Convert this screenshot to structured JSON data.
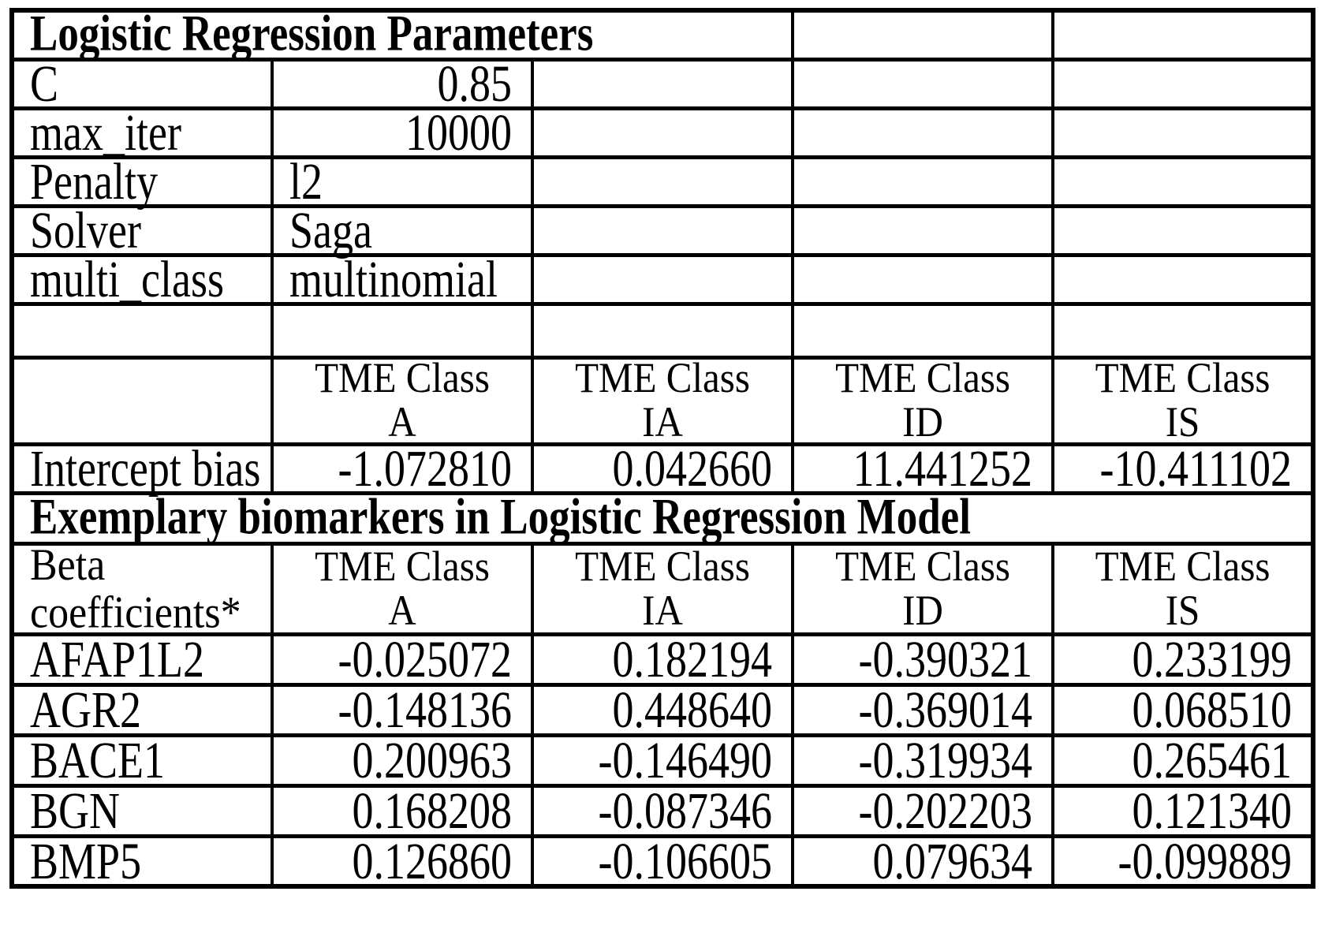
{
  "table": {
    "section1_heading": "Logistic Regression Parameters",
    "parameters": [
      {
        "name": "C",
        "value": "0.85"
      },
      {
        "name": "max_iter",
        "value": "10000"
      },
      {
        "name": "Penalty",
        "value": "l2"
      },
      {
        "name": "Solver",
        "value": "Saga"
      },
      {
        "name": "multi_class",
        "value": "multinomial"
      }
    ],
    "class_columns": [
      {
        "line1": "TME Class",
        "line2": "A"
      },
      {
        "line1": "TME Class",
        "line2": "IA"
      },
      {
        "line1": "TME Class",
        "line2": "ID"
      },
      {
        "line1": "TME Class",
        "line2": "IS"
      }
    ],
    "intercept": {
      "label": "Intercept bias",
      "values": [
        "-1.072810",
        "0.042660",
        "11.441252",
        "-10.411102"
      ]
    },
    "section2_heading": "Exemplary biomarkers in Logistic Regression Model",
    "beta_header": {
      "line1": "Beta",
      "line2": "coefficients*"
    },
    "biomarkers": [
      {
        "gene": "AFAP1L2",
        "values": [
          "-0.025072",
          "0.182194",
          "-0.390321",
          "0.233199"
        ]
      },
      {
        "gene": "AGR2",
        "values": [
          "-0.148136",
          "0.448640",
          "-0.369014",
          "0.068510"
        ]
      },
      {
        "gene": "BACE1",
        "values": [
          "0.200963",
          "-0.146490",
          "-0.319934",
          "0.265461"
        ]
      },
      {
        "gene": "BGN",
        "values": [
          "0.168208",
          "-0.087346",
          "-0.202203",
          "0.121340"
        ]
      },
      {
        "gene": "BMP5",
        "values": [
          "0.126860",
          "-0.106605",
          "0.079634",
          "-0.099889"
        ]
      }
    ],
    "colors": {
      "border": "#000000",
      "text": "#000000",
      "background": "#ffffff"
    }
  }
}
